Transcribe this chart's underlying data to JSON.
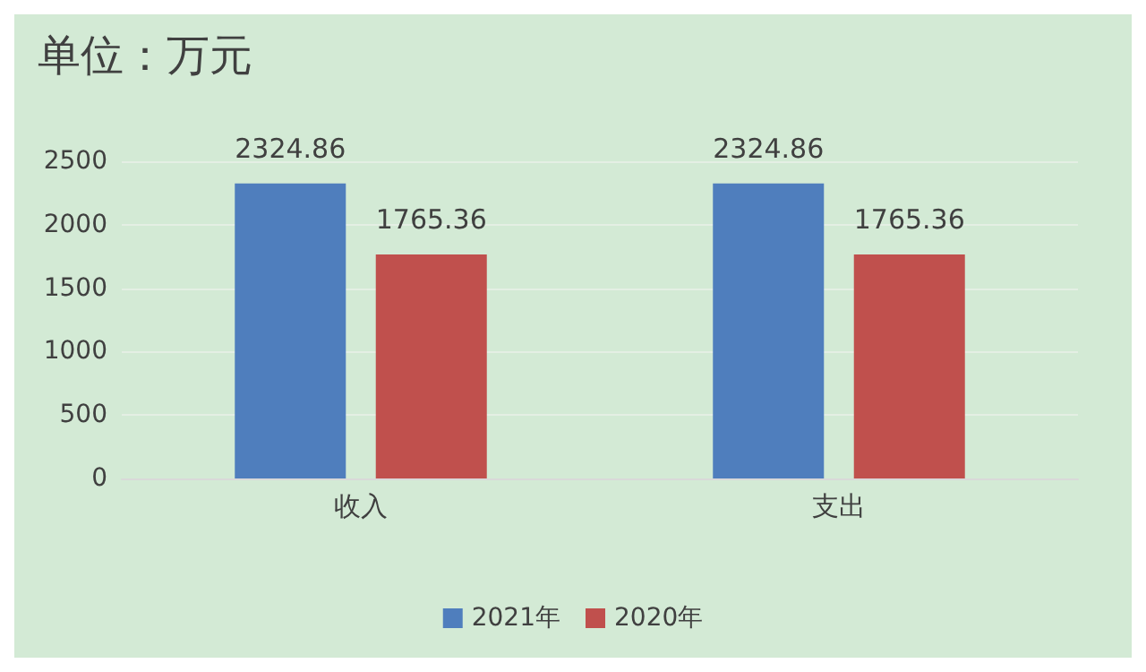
{
  "chart_data": {
    "type": "bar",
    "title": "单位：万元",
    "categories": [
      "收入",
      "支出"
    ],
    "series": [
      {
        "name": "2021年",
        "color": "#4f7ebd",
        "values": [
          2324.86,
          2324.86
        ]
      },
      {
        "name": "2020年",
        "color": "#c0504d",
        "values": [
          1765.36,
          1765.36
        ]
      }
    ],
    "ylim": [
      0,
      2500
    ],
    "yticks": [
      0,
      500,
      1000,
      1500,
      2000,
      2500
    ],
    "grid": "y",
    "legend": "bottom",
    "data_labels": true
  }
}
